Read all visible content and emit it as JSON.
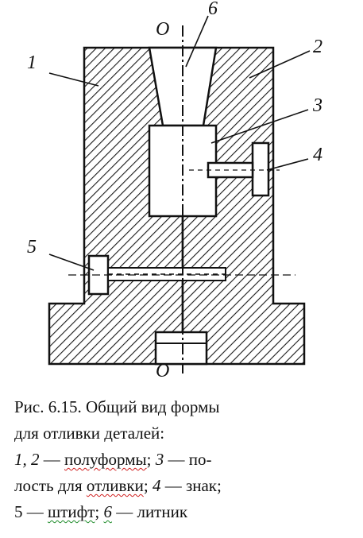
{
  "figure": {
    "axis_label_top": "O",
    "axis_label_bottom": "O",
    "callouts": {
      "n1": "1",
      "n2": "2",
      "n3": "3",
      "n4": "4",
      "n5": "5",
      "n6": "6"
    }
  },
  "caption": {
    "title_line1": "Рис. 6.15. Общий вид формы",
    "title_line2": "для отливки деталей:",
    "legend": {
      "n12": "1, 2",
      "t12": " — ",
      "w12": "полуформы",
      "s12": ";",
      "n3": "3",
      "t3": " — по-",
      "l3": "лость для ",
      "w3": "отливки",
      "t3b": "; ",
      "n4": "4",
      "t4": " — знак;",
      "n5": "5",
      "t5": " — ",
      "w5": "штифт",
      "s5": "; ",
      "n6": "6",
      "t6": " — литник"
    }
  },
  "colors": {
    "ink": "#111111",
    "squiggle_red": "#d02020",
    "squiggle_green": "#1e8c2a"
  }
}
